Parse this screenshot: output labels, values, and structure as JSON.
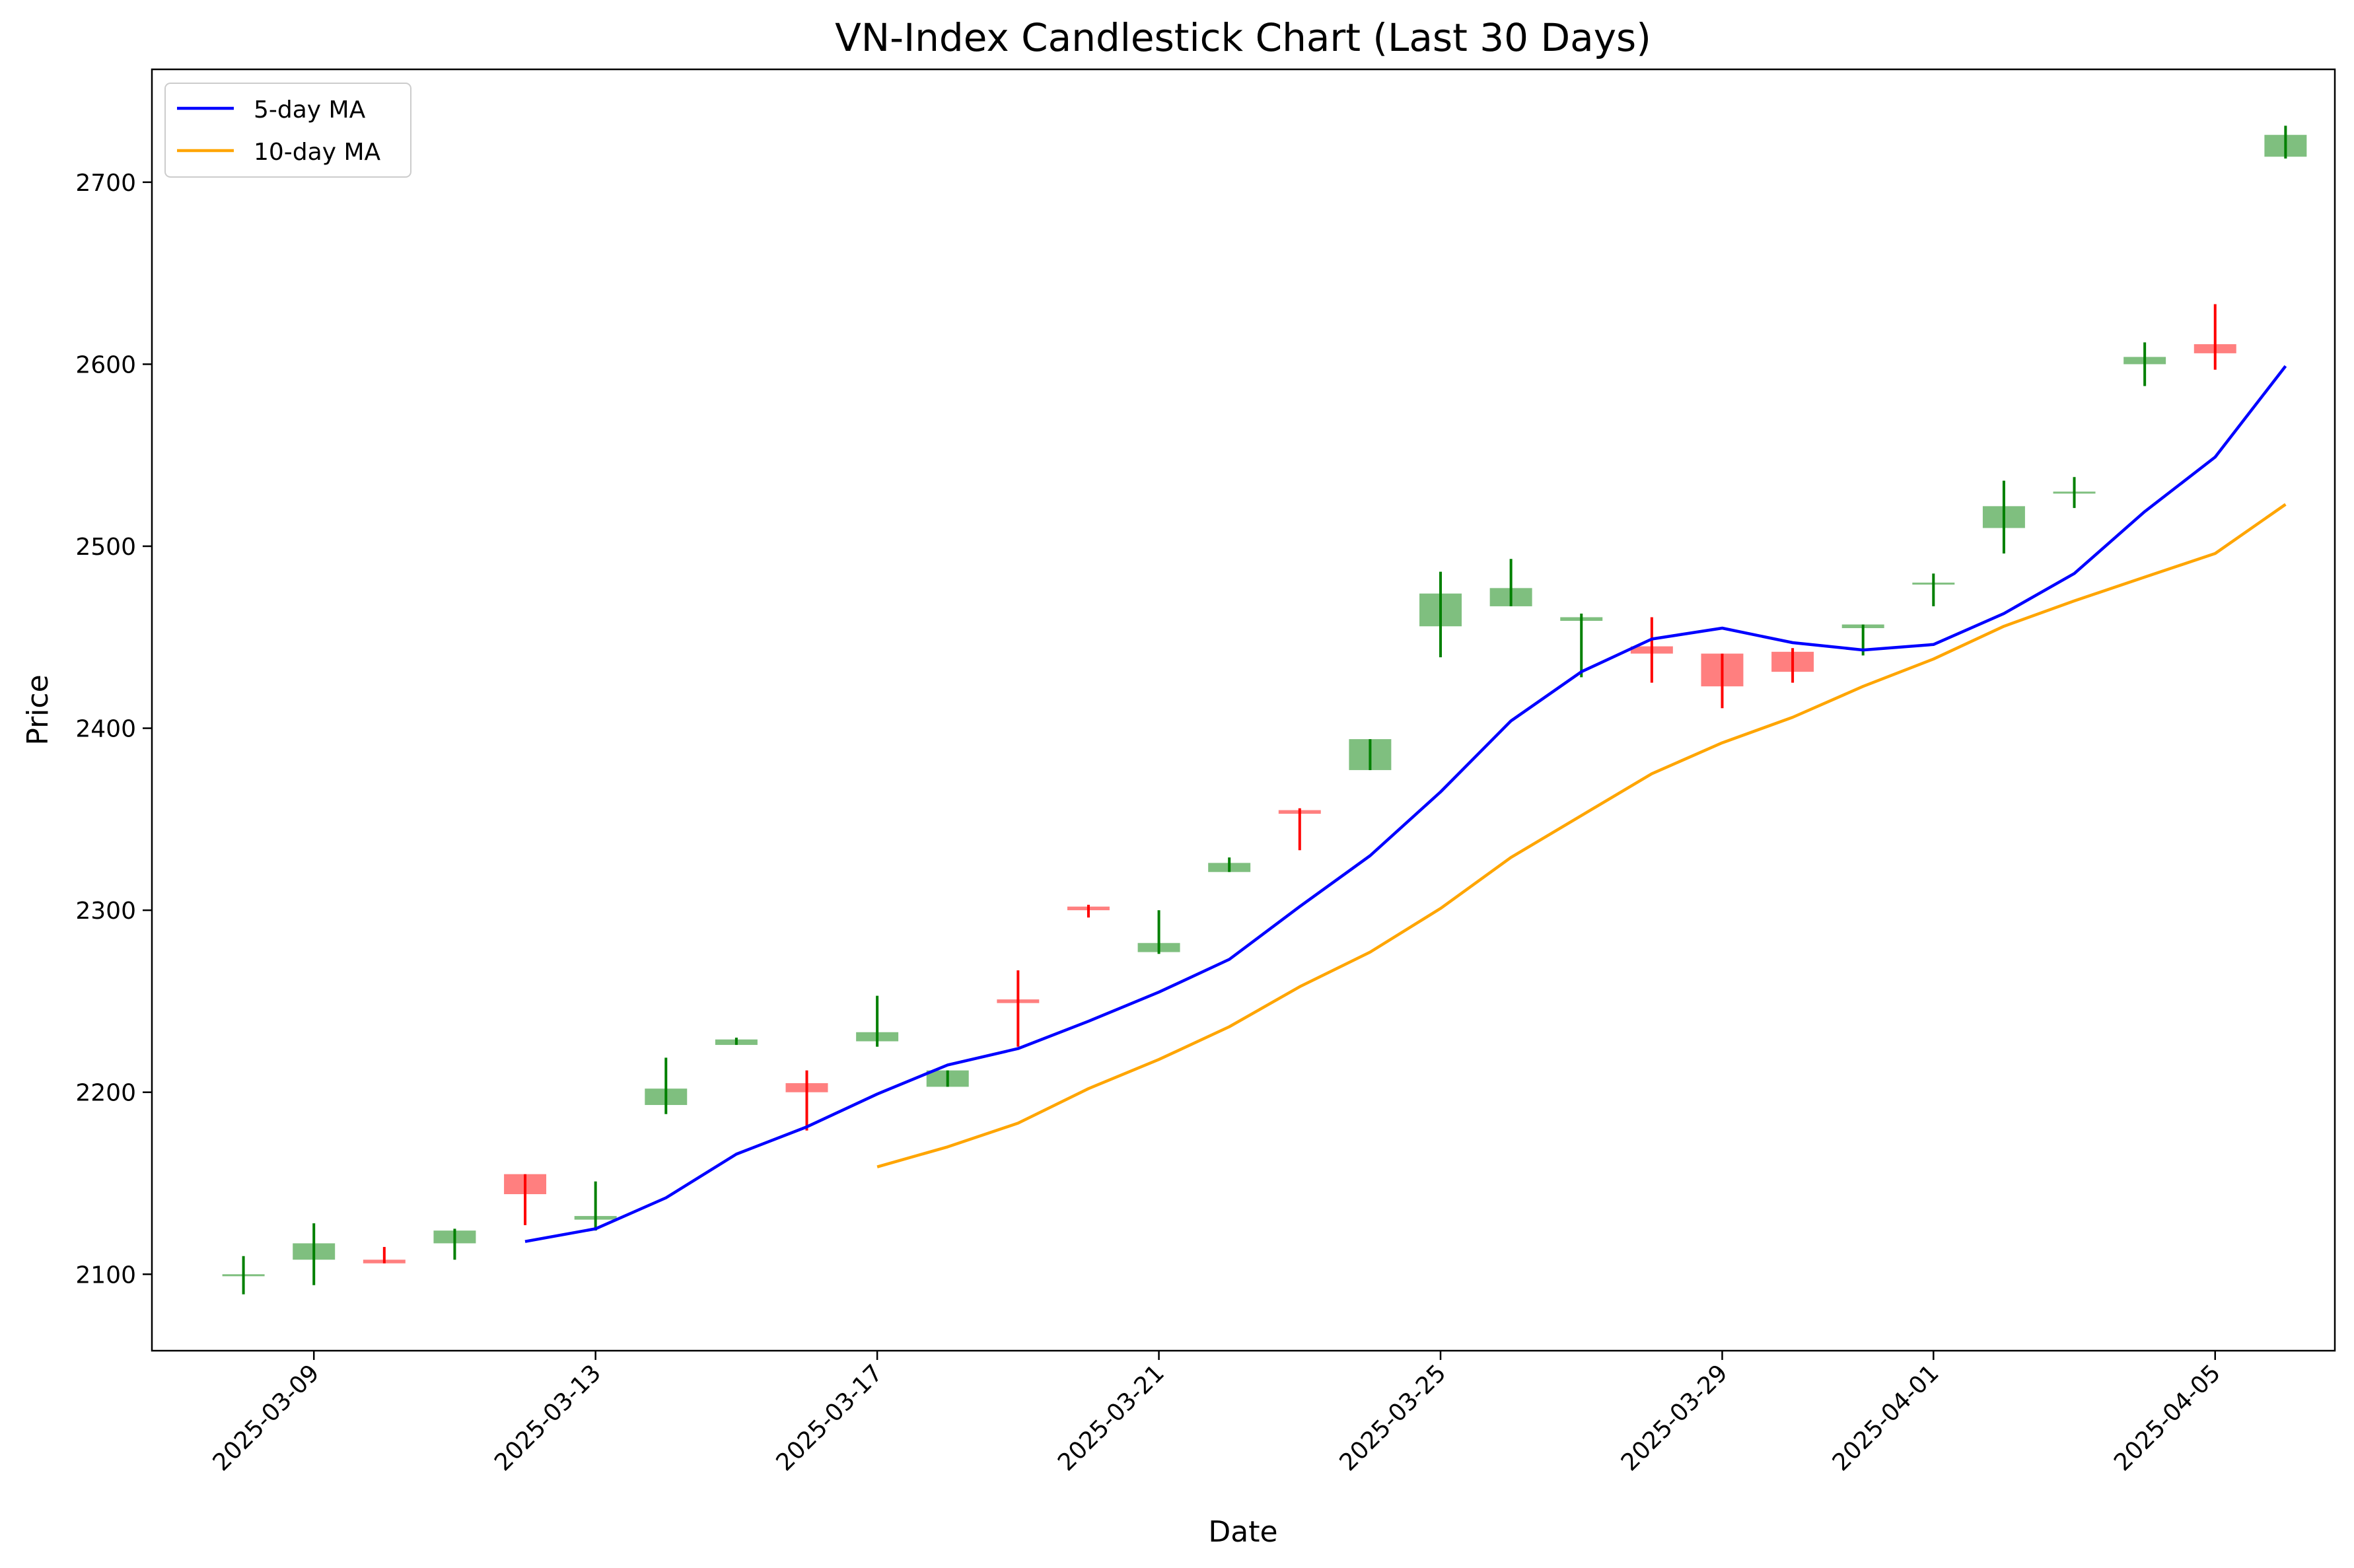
{
  "chart_data": {
    "type": "candlestick",
    "title": "VN-Index Candlestick Chart (Last 30 Days)",
    "xlabel": "Date",
    "ylabel": "Price",
    "ylim": [
      2058,
      2762
    ],
    "xlim": [
      "2025-03-06T16:48",
      "2025-04-06T16:48"
    ],
    "yticks": [
      2100,
      2200,
      2300,
      2400,
      2500,
      2600,
      2700
    ],
    "xticks": [
      {
        "date": "2025-03-09",
        "label": "2025-03-09"
      },
      {
        "date": "2025-03-13",
        "label": "2025-03-13"
      },
      {
        "date": "2025-03-17",
        "label": "2025-03-17"
      },
      {
        "date": "2025-03-21",
        "label": "2025-03-21"
      },
      {
        "date": "2025-03-25",
        "label": "2025-03-25"
      },
      {
        "date": "2025-03-29",
        "label": "2025-03-29"
      },
      {
        "date": "2025-04-01",
        "label": "2025-04-01"
      },
      {
        "date": "2025-04-05",
        "label": "2025-04-05"
      }
    ],
    "grid": false,
    "legend_position": "top-left",
    "up_color": "#008000",
    "down_color": "#ff0000",
    "candles": [
      {
        "date": "2025-03-08",
        "open": 2100,
        "high": 2110,
        "low": 2089,
        "close": 2100
      },
      {
        "date": "2025-03-09",
        "open": 2108,
        "high": 2128,
        "low": 2094,
        "close": 2117
      },
      {
        "date": "2025-03-10",
        "open": 2108,
        "high": 2115,
        "low": 2106,
        "close": 2106
      },
      {
        "date": "2025-03-11",
        "open": 2117,
        "high": 2125,
        "low": 2108,
        "close": 2124
      },
      {
        "date": "2025-03-12",
        "open": 2155,
        "high": 2155,
        "low": 2127,
        "close": 2144
      },
      {
        "date": "2025-03-13",
        "open": 2130,
        "high": 2151,
        "low": 2124,
        "close": 2132
      },
      {
        "date": "2025-03-14",
        "open": 2193,
        "high": 2219,
        "low": 2188,
        "close": 2202
      },
      {
        "date": "2025-03-15",
        "open": 2226,
        "high": 2230,
        "low": 2226,
        "close": 2229
      },
      {
        "date": "2025-03-16",
        "open": 2205,
        "high": 2212,
        "low": 2179,
        "close": 2200
      },
      {
        "date": "2025-03-17",
        "open": 2228,
        "high": 2253,
        "low": 2225,
        "close": 2233
      },
      {
        "date": "2025-03-18",
        "open": 2203,
        "high": 2212,
        "low": 2203,
        "close": 2212
      },
      {
        "date": "2025-03-19",
        "open": 2251,
        "high": 2267,
        "low": 2225,
        "close": 2249
      },
      {
        "date": "2025-03-20",
        "open": 2302,
        "high": 2303,
        "low": 2296,
        "close": 2300
      },
      {
        "date": "2025-03-21",
        "open": 2277,
        "high": 2300,
        "low": 2276,
        "close": 2282
      },
      {
        "date": "2025-03-22",
        "open": 2321,
        "high": 2329,
        "low": 2321,
        "close": 2326
      },
      {
        "date": "2025-03-23",
        "open": 2355,
        "high": 2356,
        "low": 2333,
        "close": 2353
      },
      {
        "date": "2025-03-24",
        "open": 2377,
        "high": 2394,
        "low": 2377,
        "close": 2394
      },
      {
        "date": "2025-03-25",
        "open": 2456,
        "high": 2486,
        "low": 2439,
        "close": 2474
      },
      {
        "date": "2025-03-26",
        "open": 2467,
        "high": 2493,
        "low": 2467,
        "close": 2477
      },
      {
        "date": "2025-03-27",
        "open": 2459,
        "high": 2463,
        "low": 2428,
        "close": 2461
      },
      {
        "date": "2025-03-28",
        "open": 2445,
        "high": 2461,
        "low": 2425,
        "close": 2441
      },
      {
        "date": "2025-03-29",
        "open": 2441,
        "high": 2441,
        "low": 2411,
        "close": 2423
      },
      {
        "date": "2025-03-30",
        "open": 2442,
        "high": 2444,
        "low": 2425,
        "close": 2431
      },
      {
        "date": "2025-03-31",
        "open": 2455,
        "high": 2457,
        "low": 2440,
        "close": 2457
      },
      {
        "date": "2025-04-01",
        "open": 2479,
        "high": 2485,
        "low": 2467,
        "close": 2480
      },
      {
        "date": "2025-04-02",
        "open": 2510,
        "high": 2536,
        "low": 2496,
        "close": 2522
      },
      {
        "date": "2025-04-03",
        "open": 2530,
        "high": 2538,
        "low": 2521,
        "close": 2530
      },
      {
        "date": "2025-04-04",
        "open": 2600,
        "high": 2612,
        "low": 2588,
        "close": 2604
      },
      {
        "date": "2025-04-05",
        "open": 2611,
        "high": 2633,
        "low": 2597,
        "close": 2606
      },
      {
        "date": "2025-04-06",
        "open": 2714,
        "high": 2731,
        "low": 2713,
        "close": 2726
      }
    ],
    "series": [
      {
        "name": "5-day MA",
        "color": "#0000ff",
        "x": [
          "2025-03-12",
          "2025-03-13",
          "2025-03-14",
          "2025-03-15",
          "2025-03-16",
          "2025-03-17",
          "2025-03-18",
          "2025-03-19",
          "2025-03-20",
          "2025-03-21",
          "2025-03-22",
          "2025-03-23",
          "2025-03-24",
          "2025-03-25",
          "2025-03-26",
          "2025-03-27",
          "2025-03-28",
          "2025-03-29",
          "2025-03-30",
          "2025-03-31",
          "2025-04-01",
          "2025-04-02",
          "2025-04-03",
          "2025-04-04",
          "2025-04-05",
          "2025-04-06"
        ],
        "values": [
          2118,
          2125,
          2142,
          2166,
          2181,
          2199,
          2215,
          2224,
          2239,
          2255,
          2273,
          2302,
          2330,
          2365,
          2404,
          2431,
          2449,
          2455,
          2447,
          2443,
          2446,
          2463,
          2485,
          2519,
          2549,
          2599
        ]
      },
      {
        "name": "10-day MA",
        "color": "#ffa500",
        "x": [
          "2025-03-17",
          "2025-03-18",
          "2025-03-19",
          "2025-03-20",
          "2025-03-21",
          "2025-03-22",
          "2025-03-23",
          "2025-03-24",
          "2025-03-25",
          "2025-03-26",
          "2025-03-27",
          "2025-03-28",
          "2025-03-29",
          "2025-03-30",
          "2025-03-31",
          "2025-04-01",
          "2025-04-02",
          "2025-04-03",
          "2025-04-04",
          "2025-04-05",
          "2025-04-06"
        ],
        "values": [
          2159,
          2170,
          2183,
          2202,
          2218,
          2236,
          2258,
          2277,
          2301,
          2329,
          2352,
          2375,
          2392,
          2406,
          2423,
          2438,
          2456,
          2470,
          2483,
          2496,
          2523
        ]
      }
    ]
  }
}
